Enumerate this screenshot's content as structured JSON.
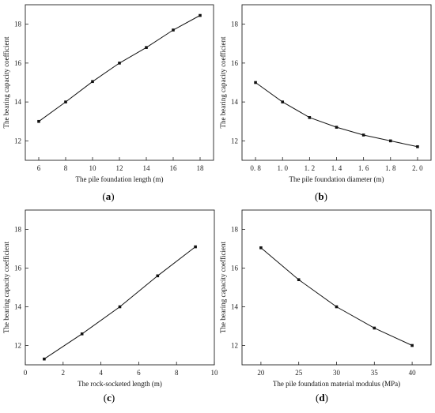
{
  "chart_data": [
    {
      "type": "line",
      "caption": "a",
      "xlabel": "The pile foundation length (m)",
      "ylabel": "The bearing capacity coefficient",
      "xlim": [
        5,
        19
      ],
      "ylim": [
        11,
        19
      ],
      "xticks": [
        6,
        8,
        10,
        12,
        14,
        16,
        18
      ],
      "yticks": [
        12,
        14,
        16,
        18
      ],
      "xtick_labels": [
        "6",
        "8",
        "10",
        "12",
        "14",
        "16",
        "18"
      ],
      "ytick_labels": [
        "12",
        "14",
        "16",
        "18"
      ],
      "x": [
        6,
        8,
        10,
        12,
        14,
        16,
        18
      ],
      "y": [
        13.0,
        14.0,
        15.05,
        16.0,
        16.8,
        17.7,
        18.45
      ],
      "grid": false
    },
    {
      "type": "line",
      "caption": "b",
      "xlabel": "The pile foundation diameter (m)",
      "ylabel": "The bearing capacity coefficient",
      "xlim": [
        0.7,
        2.1
      ],
      "ylim": [
        11,
        19
      ],
      "xticks": [
        0.8,
        1.0,
        1.2,
        1.4,
        1.6,
        1.8,
        2.0
      ],
      "yticks": [
        12,
        14,
        16,
        18
      ],
      "xtick_labels": [
        "0. 8",
        "1. 0",
        "1. 2",
        "1. 4",
        "1. 6",
        "1. 8",
        "2. 0"
      ],
      "ytick_labels": [
        "12",
        "14",
        "16",
        "18"
      ],
      "x": [
        0.8,
        1.0,
        1.2,
        1.4,
        1.6,
        1.8,
        2.0
      ],
      "y": [
        15.0,
        14.0,
        13.2,
        12.7,
        12.3,
        12.0,
        11.7
      ],
      "grid": false
    },
    {
      "type": "line",
      "caption": "c",
      "xlabel": "The rock-socketed length (m)",
      "ylabel": "The bearing capacity coefficient",
      "xlim": [
        0,
        10
      ],
      "ylim": [
        11,
        19
      ],
      "xticks": [
        0,
        2,
        4,
        6,
        8,
        10
      ],
      "yticks": [
        12,
        14,
        16,
        18
      ],
      "xtick_labels": [
        "0",
        "2",
        "4",
        "6",
        "8",
        "10"
      ],
      "ytick_labels": [
        "12",
        "14",
        "16",
        "18"
      ],
      "x": [
        1,
        3,
        5,
        7,
        9
      ],
      "y": [
        11.3,
        12.6,
        14.0,
        15.6,
        17.1
      ],
      "grid": false
    },
    {
      "type": "line",
      "caption": "d",
      "xlabel": "The pile foundation material modulus (MPa)",
      "ylabel": "The bearing capacity coefficient",
      "xlim": [
        17.5,
        42.5
      ],
      "ylim": [
        11,
        19
      ],
      "xticks": [
        20,
        25,
        30,
        35,
        40
      ],
      "yticks": [
        12,
        14,
        16,
        18
      ],
      "xtick_labels": [
        "20",
        "25",
        "30",
        "35",
        "40"
      ],
      "ytick_labels": [
        "12",
        "14",
        "16",
        "18"
      ],
      "x": [
        20,
        25,
        30,
        35,
        40
      ],
      "y": [
        17.05,
        15.4,
        14.0,
        12.9,
        12.0
      ],
      "grid": false
    }
  ]
}
